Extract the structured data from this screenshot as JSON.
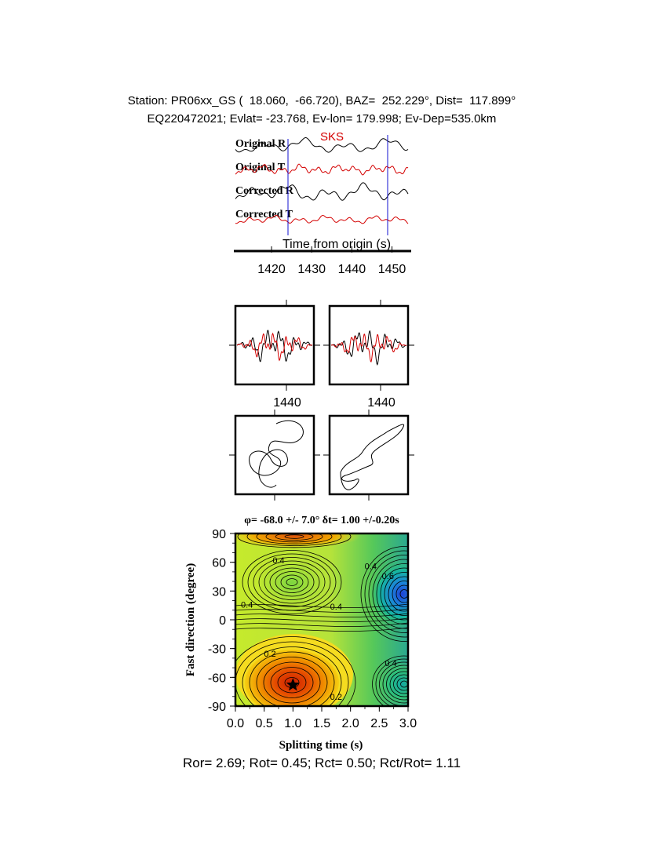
{
  "header": {
    "line1": "Station: PR06xx_GS (  18.060,  -66.720), BAZ=  252.229°, Dist=  117.899°",
    "line2": "EQ220472021; Evlat= -23.768, Ev-lon= 179.998; Ev-Dep=535.0km"
  },
  "chart_data": [
    {
      "type": "line",
      "panel": "waveforms",
      "phase_label": "SKS",
      "trace_labels": [
        "Original R",
        "Original T",
        "Corrected R",
        "Corrected T"
      ],
      "xlabel": "Time from origin (s)",
      "x_ticks": [
        "1420",
        "1430",
        "1440",
        "1450"
      ],
      "xlim": [
        1411,
        1454
      ],
      "window_marks": [
        1423,
        1448
      ],
      "series_colors": {
        "R": "#000000",
        "T": "#d40000"
      }
    },
    {
      "type": "line",
      "panel": "waveform-overlays",
      "x_tick": "1440",
      "series_colors": [
        "#000000",
        "#d40000"
      ]
    },
    {
      "type": "scatter",
      "panel": "particle-motion"
    },
    {
      "type": "heatmap",
      "panel": "grid-search",
      "title": "φ= -68.0 +/- 7.0° δt= 1.00 +/-0.20s",
      "xlabel": "Splitting time (s)",
      "ylabel": "Fast direction (degree)",
      "xlim": [
        0,
        3
      ],
      "ylim": [
        -90,
        90
      ],
      "x_ticks": [
        "0.0",
        "0.5",
        "1.0",
        "1.5",
        "2.0",
        "2.5",
        "3.0"
      ],
      "y_ticks": [
        "90",
        "60",
        "30",
        "0",
        "-30",
        "-60",
        "-90"
      ],
      "contour_labels": [
        {
          "text": "0.4",
          "x": 0.75,
          "y": 62
        },
        {
          "text": "0.4",
          "x": 2.35,
          "y": 56
        },
        {
          "text": "0.6",
          "x": 2.65,
          "y": 46
        },
        {
          "text": "0.4",
          "x": 1.75,
          "y": 14
        },
        {
          "text": "0.4",
          "x": 0.2,
          "y": 16
        },
        {
          "text": "0.2",
          "x": 0.6,
          "y": -35
        },
        {
          "text": "0.4",
          "x": 2.7,
          "y": -45
        },
        {
          "text": "0.2",
          "x": 1.75,
          "y": -80
        }
      ],
      "best_fit": {
        "dt": 1.0,
        "phi": -68.0
      }
    }
  ],
  "footer": "Ror= 2.69; Rot= 0.45; Rct= 0.50; Rct/Rot= 1.11"
}
